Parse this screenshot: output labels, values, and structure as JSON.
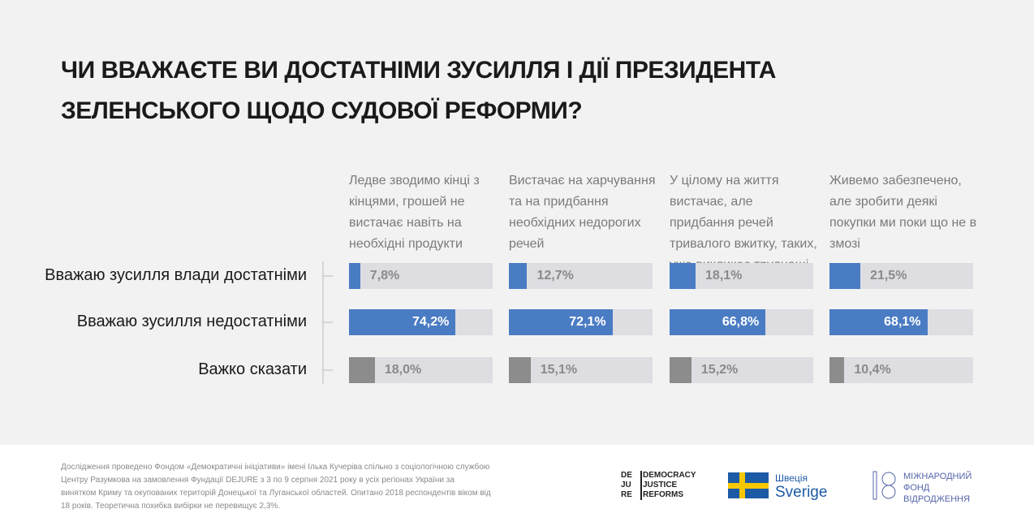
{
  "chart_data": {
    "type": "bar",
    "orientation": "horizontal",
    "title": "ЧИ ВВАЖАЄТЕ ВИ ДОСТАТНІМИ ЗУСИЛЛЯ І ДІЇ ПРЕЗИДЕНТА ЗЕЛЕНСЬКОГО ЩОДО СУДОВОЇ РЕФОРМИ?",
    "categories": [
      "Вважаю зусилля влади достатніми",
      "Вважаю зусилля недостатніми",
      "Важко сказати"
    ],
    "colors": [
      "#4a7cc4",
      "#4a7cc4",
      "#8c8c8c"
    ],
    "xlim": [
      0,
      100
    ],
    "series": [
      {
        "name": "Ледве зводимо кінці з кінцями, грошей не вистачає навіть на необхідні продукти",
        "values": [
          7.8,
          74.2,
          18.0
        ],
        "value_labels": [
          "7,8%",
          "74,2%",
          "18,0%"
        ]
      },
      {
        "name": "Вистачає на харчування та на придбання необхідних недорогих речей",
        "values": [
          12.7,
          72.1,
          15.1
        ],
        "value_labels": [
          "12,7%",
          "72,1%",
          "15,1%"
        ]
      },
      {
        "name": "У цілому на життя вистачає, але придбання речей тривалого вжитку, таких, уже викликає труднощі",
        "values": [
          18.1,
          66.8,
          15.2
        ],
        "value_labels": [
          "18,1%",
          "66,8%",
          "15,2%"
        ]
      },
      {
        "name": "Живемо забезпечено, але зробити деякі покупки ми поки що не в змозі",
        "values": [
          21.5,
          68.1,
          10.4
        ],
        "value_labels": [
          "21,5%",
          "68,1%",
          "10,4%"
        ]
      }
    ]
  },
  "note": "Дослідження проведено Фондом «Демократичні ініціативи» імені Ілька Кучеріва спільно з соціологічною службою Центру Разумкова на замовлення Фундації DEJURE з 3 по 9 серпня 2021 року в усіх регіонах України за винятком Криму та окупованих територій Донецької та Луганської областей. Опитано 2018 респондентів віком від 18 років. Теоретична похибка вибірки не перевищує 2,3%.",
  "logos": {
    "dejure": "DE JU RE",
    "dejure_name": "DEMOCRACY JUSTICE REFORMS",
    "sweden": "Швеція",
    "sverige": "Sverige",
    "irf": "МІЖНАРОДНИЙ ФОНД ВІДРОДЖЕННЯ"
  }
}
